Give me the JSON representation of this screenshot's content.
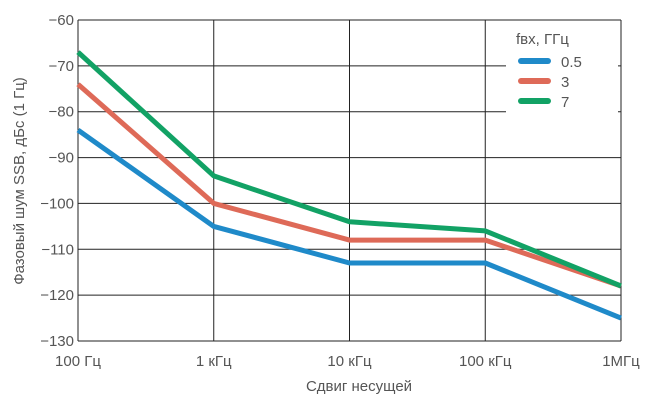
{
  "chart_data": {
    "type": "line",
    "xlabel": "Сдвиг несущей",
    "ylabel": "Фазовый шум SSB, дБс (1 Гц)",
    "x_scale": "log",
    "x": [
      100,
      1000,
      10000,
      100000,
      1000000
    ],
    "x_tick_labels": [
      "100 Гц",
      "1 кГц",
      "10 кГц",
      "100 кГц",
      "1МГц"
    ],
    "ylim": [
      -130,
      -60
    ],
    "y_ticks": [
      -60,
      -70,
      -80,
      -90,
      -100,
      -110,
      -120,
      -130
    ],
    "y_tick_labels": [
      "−60",
      "−70",
      "−80",
      "−90",
      "−100",
      "−110",
      "−120",
      "−130"
    ],
    "grid": true,
    "legend_title": "fвх, ГГц",
    "legend_position": "top-right",
    "series": [
      {
        "name": "0.5",
        "color": "#1f8ac9",
        "values": [
          -84,
          -105,
          -113,
          -113,
          -125
        ]
      },
      {
        "name": "3",
        "color": "#de6a58",
        "values": [
          -74,
          -100,
          -108,
          -108,
          -118
        ]
      },
      {
        "name": "7",
        "color": "#12a265",
        "values": [
          -67,
          -94,
          -104,
          -106,
          -118
        ]
      }
    ]
  }
}
